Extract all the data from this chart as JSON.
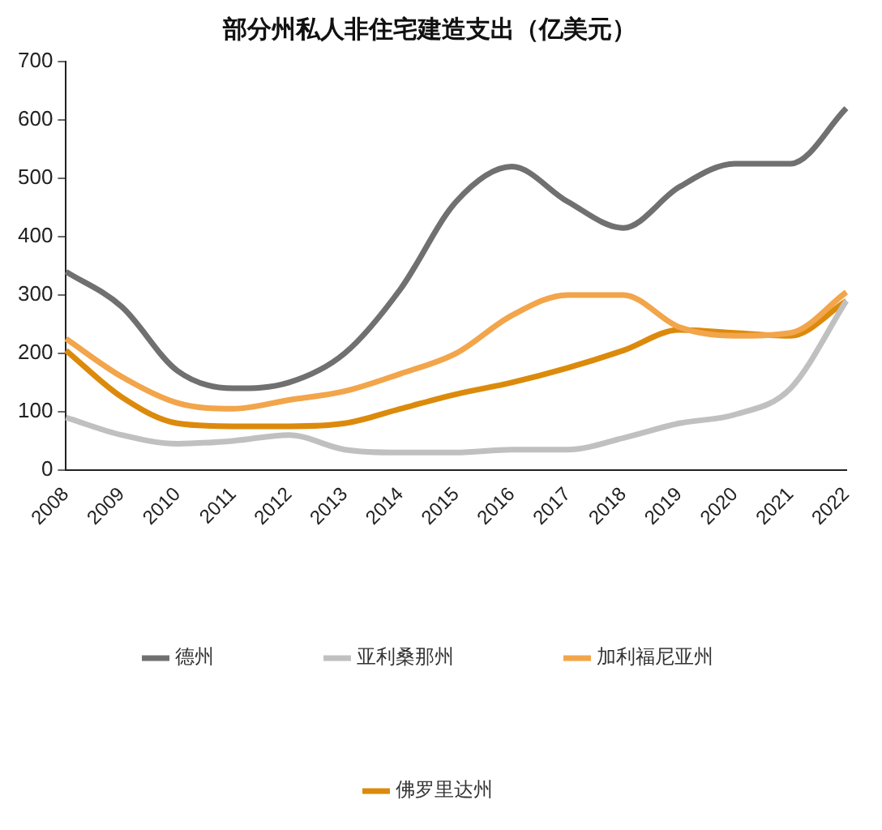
{
  "chart_data": {
    "type": "line",
    "title": "部分州私人非住宅建造支出（亿美元）",
    "categories": [
      "2008",
      "2009",
      "2010",
      "2011",
      "2012",
      "2013",
      "2014",
      "2015",
      "2016",
      "2017",
      "2018",
      "2019",
      "2020",
      "2021",
      "2022"
    ],
    "series": [
      {
        "name": "德州",
        "color": "#707070",
        "values": [
          340,
          280,
          170,
          140,
          150,
          200,
          310,
          460,
          520,
          460,
          415,
          485,
          525,
          525,
          620
        ]
      },
      {
        "name": "亚利桑那州",
        "color": "#c0c0c0",
        "values": [
          90,
          60,
          45,
          50,
          60,
          35,
          30,
          30,
          35,
          35,
          55,
          80,
          95,
          140,
          290
        ]
      },
      {
        "name": "加利福尼亚州",
        "color": "#f2a54a",
        "values": [
          225,
          160,
          115,
          105,
          120,
          135,
          165,
          200,
          265,
          300,
          300,
          245,
          230,
          235,
          305
        ]
      },
      {
        "name": "佛罗里达州",
        "color": "#dc8a0c",
        "values": [
          205,
          125,
          80,
          75,
          75,
          80,
          105,
          130,
          150,
          175,
          205,
          240,
          235,
          230,
          290
        ]
      }
    ],
    "ylim": [
      0,
      700
    ],
    "yticks": [
      0,
      100,
      200,
      300,
      400,
      500,
      600,
      700
    ],
    "grid": false,
    "legend": "bottom",
    "marker": "none",
    "line_style": "solid"
  }
}
